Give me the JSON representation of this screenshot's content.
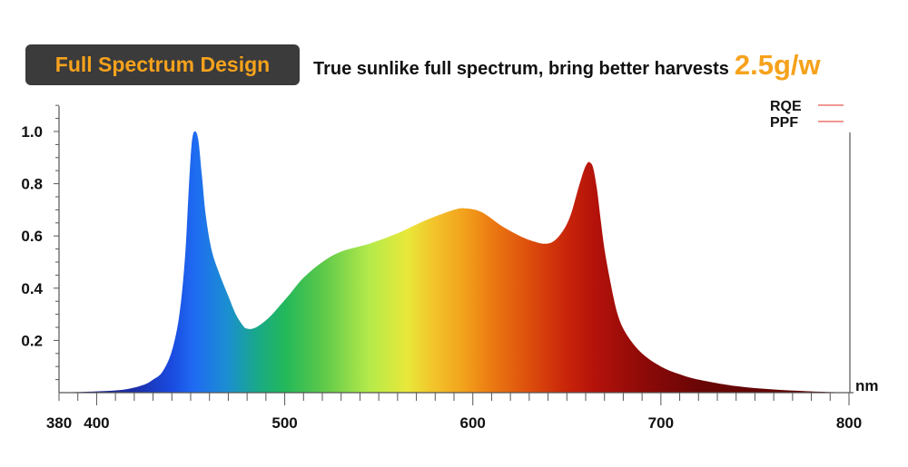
{
  "header": {
    "badge_label": "Full Spectrum Design",
    "subtitle": "True sunlike full spectrum, bring better harvests",
    "efficacy": "2.5g/w",
    "badge_bg": "#3b3b3b",
    "accent": "#f6a21c"
  },
  "chart_data": {
    "type": "area",
    "title": "",
    "xlabel": "nm",
    "ylabel": "",
    "xlim": [
      380,
      800
    ],
    "ylim": [
      0,
      1.1
    ],
    "x_ticks": [
      380,
      400,
      500,
      600,
      700,
      800
    ],
    "y_ticks": [
      0.2,
      0.4,
      0.6,
      0.8,
      1.0
    ],
    "y_tick_labels": [
      "0.2",
      "0.4",
      "0.6",
      "0.8",
      "1.0"
    ],
    "grid": false,
    "legend": {
      "placement": "top-right",
      "entries": [
        {
          "label": "RQE",
          "color": "#e85a4f"
        },
        {
          "label": "PPF",
          "color": "#e85a4f"
        }
      ]
    },
    "series": [
      {
        "fill": "wavelength-gradient",
        "x": [
          380,
          400,
          415,
          425,
          430,
          435,
          440,
          444,
          447,
          449,
          450.5,
          452,
          454,
          456,
          458,
          461,
          465,
          470,
          474,
          478,
          480,
          483,
          487,
          492,
          497,
          503,
          510,
          520,
          530,
          545,
          560,
          575,
          590,
          597,
          605,
          615,
          625,
          632,
          638,
          643,
          648,
          652,
          656,
          659,
          661,
          662.5,
          664,
          666,
          668,
          670,
          673,
          677,
          682,
          690,
          700,
          710,
          720,
          740,
          760,
          780,
          800
        ],
        "y": [
          0.0,
          0.005,
          0.012,
          0.03,
          0.05,
          0.08,
          0.16,
          0.3,
          0.52,
          0.78,
          0.95,
          1.0,
          0.97,
          0.83,
          0.68,
          0.55,
          0.46,
          0.37,
          0.3,
          0.255,
          0.245,
          0.245,
          0.26,
          0.29,
          0.33,
          0.38,
          0.44,
          0.5,
          0.54,
          0.57,
          0.61,
          0.66,
          0.7,
          0.705,
          0.69,
          0.64,
          0.6,
          0.58,
          0.57,
          0.58,
          0.62,
          0.68,
          0.78,
          0.85,
          0.88,
          0.88,
          0.86,
          0.78,
          0.66,
          0.55,
          0.43,
          0.3,
          0.22,
          0.15,
          0.1,
          0.07,
          0.05,
          0.025,
          0.012,
          0.005,
          0.0
        ]
      }
    ]
  }
}
